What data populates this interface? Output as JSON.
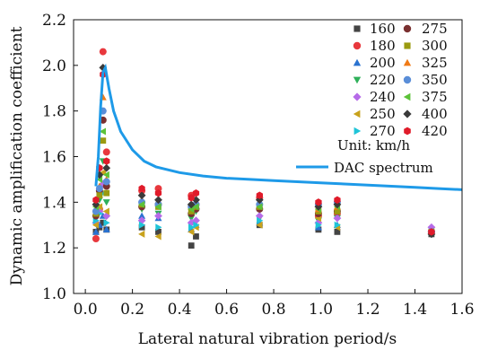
{
  "chart_data": {
    "type": "scatter",
    "title": "",
    "xlabel": "Lateral natural vibration period/s",
    "ylabel": "Dynamic amplification coefficient",
    "xlim": [
      -0.05,
      1.6
    ],
    "ylim": [
      1.0,
      2.2
    ],
    "xticks": [
      0.0,
      0.2,
      0.4,
      0.6,
      0.8,
      1.0,
      1.2,
      1.4,
      1.6
    ],
    "xtick_labels": [
      "0.0",
      "0.2",
      "0.4",
      "0.6",
      "0.8",
      "1.0",
      "1.2",
      "1.4",
      "1.6"
    ],
    "yticks": [
      1.0,
      1.2,
      1.4,
      1.6,
      1.8,
      2.0,
      2.2
    ],
    "ytick_labels": [
      "1.0",
      "1.2",
      "1.4",
      "1.6",
      "1.8",
      "2.0",
      "2.2"
    ],
    "grid": false,
    "legend_position": "top-right",
    "unit_note": "Unit: km/h",
    "periods": [
      0.045,
      0.06,
      0.075,
      0.09,
      0.24,
      0.31,
      0.45,
      0.47,
      0.74,
      0.99,
      1.07,
      1.47
    ],
    "series": [
      {
        "name": "160",
        "marker": "square",
        "color": "#444444",
        "y": [
          1.27,
          1.29,
          1.31,
          1.28,
          1.29,
          1.27,
          1.21,
          1.25,
          1.3,
          1.28,
          1.27,
          1.26
        ]
      },
      {
        "name": "180",
        "marker": "circle",
        "color": "#e8383d",
        "y": [
          1.24,
          1.37,
          2.06,
          1.62,
          1.45,
          1.46,
          1.43,
          1.39,
          1.42,
          1.34,
          1.35,
          1.27
        ]
      },
      {
        "name": "200",
        "marker": "triangle-up",
        "color": "#2a72d0",
        "y": [
          1.27,
          1.3,
          1.34,
          1.28,
          1.34,
          1.33,
          1.28,
          1.3,
          1.31,
          1.29,
          1.3,
          1.28
        ]
      },
      {
        "name": "220",
        "marker": "triangle-down",
        "color": "#2fb05a",
        "y": [
          1.33,
          1.41,
          1.58,
          1.4,
          1.37,
          1.35,
          1.33,
          1.36,
          1.33,
          1.32,
          1.33,
          1.28
        ]
      },
      {
        "name": "240",
        "marker": "diamond",
        "color": "#b66be8",
        "y": [
          1.31,
          1.36,
          1.48,
          1.34,
          1.32,
          1.34,
          1.31,
          1.32,
          1.34,
          1.31,
          1.33,
          1.29
        ]
      },
      {
        "name": "250",
        "marker": "triangle-left",
        "color": "#c8a21c",
        "y": [
          1.3,
          1.38,
          1.53,
          1.36,
          1.26,
          1.25,
          1.27,
          1.29,
          1.3,
          1.33,
          1.29,
          1.27
        ]
      },
      {
        "name": "270",
        "marker": "triangle-right",
        "color": "#1fc4d8",
        "y": [
          1.32,
          1.35,
          1.44,
          1.31,
          1.3,
          1.29,
          1.29,
          1.3,
          1.32,
          1.3,
          1.3,
          1.27
        ]
      },
      {
        "name": "275",
        "marker": "circle",
        "color": "#7a3030",
        "y": [
          1.34,
          1.45,
          1.76,
          1.47,
          1.38,
          1.39,
          1.35,
          1.37,
          1.37,
          1.35,
          1.36,
          1.27
        ]
      },
      {
        "name": "300",
        "marker": "square",
        "color": "#9a9a10",
        "y": [
          1.35,
          1.43,
          1.67,
          1.44,
          1.39,
          1.38,
          1.36,
          1.38,
          1.38,
          1.36,
          1.36,
          1.27
        ]
      },
      {
        "name": "325",
        "marker": "triangle-up",
        "color": "#f07a16",
        "y": [
          1.37,
          1.47,
          1.86,
          1.5,
          1.41,
          1.4,
          1.38,
          1.4,
          1.4,
          1.37,
          1.38,
          1.27
        ]
      },
      {
        "name": "350",
        "marker": "circle",
        "color": "#5a8ed8",
        "y": [
          1.36,
          1.46,
          1.8,
          1.49,
          1.4,
          1.39,
          1.38,
          1.39,
          1.39,
          1.39,
          1.4,
          1.27
        ]
      },
      {
        "name": "375",
        "marker": "triangle-left",
        "color": "#5cc238",
        "y": [
          1.38,
          1.5,
          1.71,
          1.52,
          1.39,
          1.38,
          1.37,
          1.38,
          1.38,
          1.37,
          1.38,
          1.27
        ]
      },
      {
        "name": "400",
        "marker": "diamond",
        "color": "#3a3a3a",
        "y": [
          1.39,
          1.52,
          1.99,
          1.55,
          1.43,
          1.41,
          1.39,
          1.41,
          1.41,
          1.38,
          1.39,
          1.26
        ]
      },
      {
        "name": "420",
        "marker": "hexagon",
        "color": "#e01b2a",
        "y": [
          1.41,
          1.55,
          1.96,
          1.58,
          1.46,
          1.44,
          1.42,
          1.44,
          1.43,
          1.4,
          1.41,
          1.27
        ]
      }
    ],
    "curve": {
      "name": "DAC spectrum",
      "color": "#1e9ae8",
      "points": [
        [
          0.045,
          1.47
        ],
        [
          0.055,
          1.6
        ],
        [
          0.065,
          1.82
        ],
        [
          0.075,
          1.97
        ],
        [
          0.085,
          1.99
        ],
        [
          0.1,
          1.9
        ],
        [
          0.12,
          1.8
        ],
        [
          0.15,
          1.71
        ],
        [
          0.2,
          1.63
        ],
        [
          0.25,
          1.58
        ],
        [
          0.3,
          1.555
        ],
        [
          0.4,
          1.53
        ],
        [
          0.5,
          1.515
        ],
        [
          0.6,
          1.505
        ],
        [
          0.7,
          1.5
        ],
        [
          0.8,
          1.495
        ],
        [
          0.9,
          1.49
        ],
        [
          1.0,
          1.485
        ],
        [
          1.1,
          1.48
        ],
        [
          1.2,
          1.475
        ],
        [
          1.3,
          1.47
        ],
        [
          1.4,
          1.465
        ],
        [
          1.5,
          1.46
        ],
        [
          1.6,
          1.455
        ]
      ]
    }
  }
}
